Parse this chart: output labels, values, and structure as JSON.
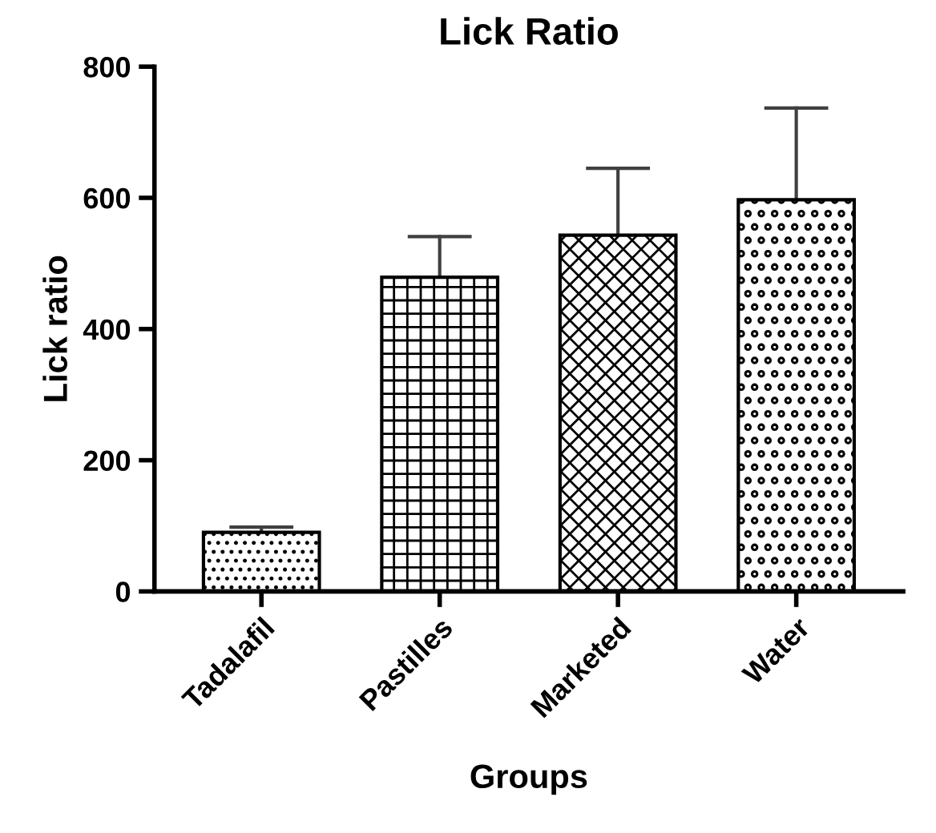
{
  "chart_data": {
    "type": "bar",
    "title": "Lick Ratio",
    "xlabel": "Groups",
    "ylabel": "Lick ratio",
    "categories": [
      "Tadalafil",
      "Pastilles",
      "Marketed",
      "Water"
    ],
    "values": [
      90,
      479,
      543,
      597
    ],
    "errors": [
      8,
      62,
      102,
      140
    ],
    "colors": [
      "#000000",
      "#000000",
      "#000000",
      "#000000"
    ],
    "ylim": [
      0,
      800
    ],
    "yticks": [
      0,
      200,
      400,
      600,
      800
    ],
    "grid": false,
    "legend": false
  }
}
